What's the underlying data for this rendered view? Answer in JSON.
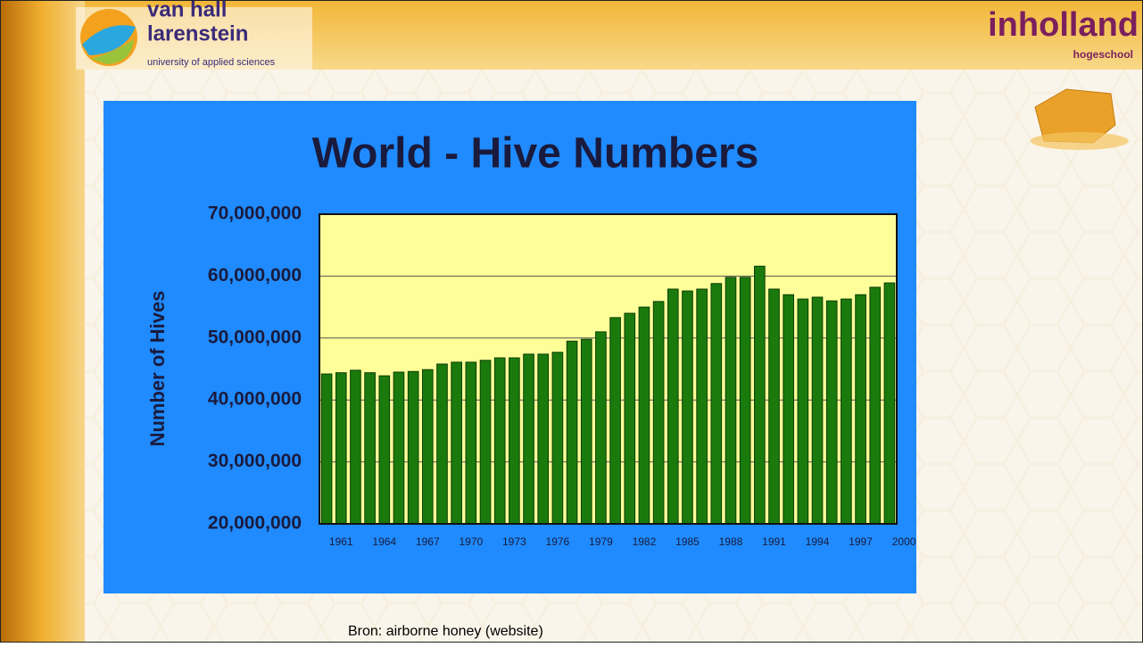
{
  "header": {
    "left_logo": {
      "line1": "van hall",
      "line2": "larenstein",
      "tagline": "university of applied sciences"
    },
    "right_logo": {
      "name": "inholland",
      "sub": "hogeschool"
    }
  },
  "chart_data": {
    "type": "bar",
    "title": "World - Hive Numbers",
    "y_label": "Number of Hives",
    "categories": [
      "1961",
      null,
      null,
      "1964",
      null,
      null,
      "1967",
      null,
      null,
      "1970",
      null,
      null,
      "1973",
      null,
      null,
      "1976",
      null,
      null,
      "1979",
      null,
      null,
      "1982",
      null,
      null,
      "1985",
      null,
      null,
      "1988",
      null,
      null,
      "1991",
      null,
      null,
      "1994",
      null,
      null,
      "1997",
      null,
      null,
      "2000"
    ],
    "values": [
      44200000,
      44400000,
      44800000,
      44400000,
      43900000,
      44500000,
      44600000,
      44900000,
      45800000,
      46100000,
      46100000,
      46400000,
      46800000,
      46800000,
      47400000,
      47400000,
      47700000,
      49500000,
      49800000,
      51000000,
      53300000,
      54000000,
      55000000,
      55900000,
      57900000,
      57600000,
      57900000,
      58800000,
      59800000,
      59800000,
      61600000,
      57900000,
      57000000,
      56300000,
      56600000,
      56000000,
      56300000,
      57000000,
      58200000,
      58900000
    ],
    "color": "#1b7a0c",
    "ylim": [
      20000000,
      70000000
    ],
    "yticks": [
      {
        "value": 20000000,
        "label": "20,000,000"
      },
      {
        "value": 30000000,
        "label": "30,000,000"
      },
      {
        "value": 40000000,
        "label": "40,000,000"
      },
      {
        "value": 50000000,
        "label": "50,000,000"
      },
      {
        "value": 60000000,
        "label": "60,000,000"
      },
      {
        "value": 70000000,
        "label": "70,000,000"
      }
    ],
    "grid": true
  },
  "source": "Bron: airborne honey (website)"
}
